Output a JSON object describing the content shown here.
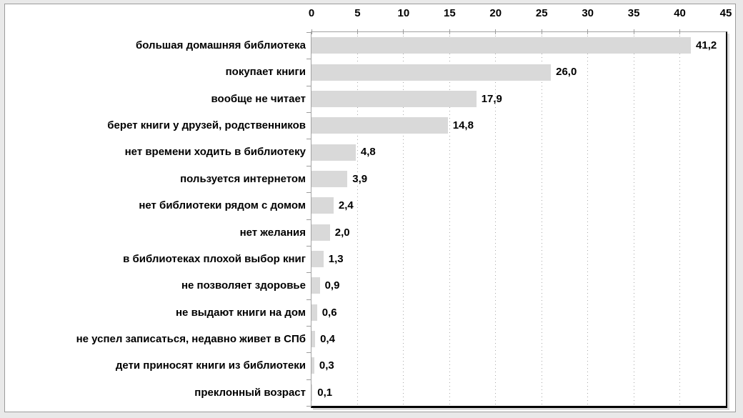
{
  "chart_data": {
    "type": "bar",
    "orientation": "horizontal",
    "title": "",
    "xlabel": "",
    "ylabel": "",
    "xlim": [
      0,
      45
    ],
    "x_ticks": [
      0,
      5,
      10,
      15,
      20,
      25,
      30,
      35,
      40,
      45
    ],
    "x_tick_labels": [
      "0",
      "5",
      "10",
      "15",
      "20",
      "25",
      "30",
      "35",
      "40",
      "45"
    ],
    "grid": "vertical-dotted",
    "legend": "none",
    "decimal_separator": ",",
    "categories": [
      "большая домашняя библиотека",
      "покупает книги",
      "вообще не читает",
      "берет книги у друзей, родственников",
      "нет времени ходить в библиотеку",
      "пользуется интернетом",
      "нет библиотеки рядом с домом",
      "нет желания",
      "в библиотеках плохой выбор книг",
      "не позволяет здоровье",
      "не выдают книги на дом",
      "не успел записаться, недавно живет в СПб",
      "дети приносят книги из библиотеки",
      "преклонный возраст"
    ],
    "values": [
      41.2,
      26.0,
      17.9,
      14.8,
      4.8,
      3.9,
      2.4,
      2.0,
      1.3,
      0.9,
      0.6,
      0.4,
      0.3,
      0.1
    ],
    "value_labels": [
      "41,2",
      "26,0",
      "17,9",
      "14,8",
      "4,8",
      "3,9",
      "2,4",
      "2,0",
      "1,3",
      "0,9",
      "0,6",
      "0,4",
      "0,3",
      "0,1"
    ],
    "colors": {
      "bar": "#d9d9d9",
      "axis_line": "#a3a3a3",
      "emphasis_axis": "#000000",
      "grid": "#a6a6a6",
      "text": "#000000",
      "frame_background": "#e9e9e9",
      "plot_background": "#ffffff"
    }
  }
}
